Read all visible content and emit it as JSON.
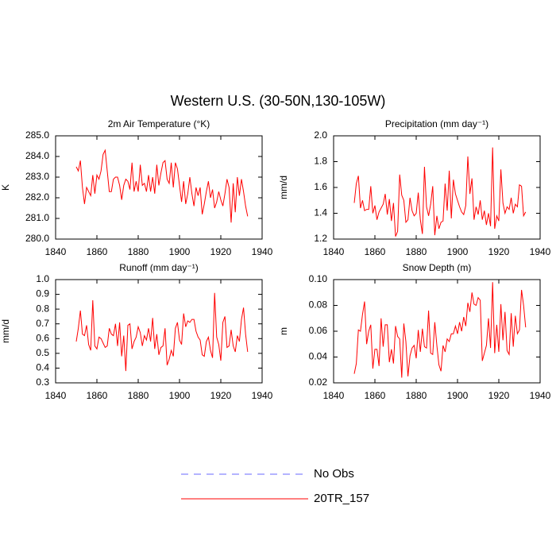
{
  "title": "Western U.S. (30-50N,130-105W)",
  "legend": [
    {
      "name": "No Obs",
      "color": "#6a6aff",
      "dashed": true
    },
    {
      "name": "20TR_157",
      "color": "#ff0000",
      "dashed": false
    }
  ],
  "chart_data": [
    {
      "type": "line",
      "title": "2m Air Temperature (°K)",
      "ylabel": "K",
      "x": [
        1850,
        1851,
        1852,
        1853,
        1854,
        1855,
        1856,
        1857,
        1858,
        1859,
        1860,
        1861,
        1862,
        1863,
        1864,
        1865,
        1866,
        1867,
        1868,
        1869,
        1870,
        1871,
        1872,
        1873,
        1874,
        1875,
        1876,
        1877,
        1878,
        1879,
        1880,
        1881,
        1882,
        1883,
        1884,
        1885,
        1886,
        1887,
        1888,
        1889,
        1890,
        1891,
        1892,
        1893,
        1894,
        1895,
        1896,
        1897,
        1898,
        1899,
        1900,
        1901,
        1902,
        1903,
        1904,
        1905,
        1906,
        1907,
        1908,
        1909,
        1910,
        1911,
        1912,
        1913,
        1914,
        1915,
        1916,
        1917,
        1918,
        1919,
        1920,
        1921,
        1922,
        1923,
        1924,
        1925,
        1926,
        1927,
        1928,
        1929,
        1930,
        1931,
        1932,
        1933
      ],
      "series": [
        {
          "color": "#ff0000",
          "values": [
            283.5,
            283.3,
            283.8,
            282.5,
            281.7,
            282.5,
            282.3,
            282.1,
            283.1,
            282.2,
            283.1,
            282.9,
            283.3,
            284.1,
            284.3,
            283.3,
            282.3,
            282.3,
            282.9,
            283.0,
            283.0,
            282.6,
            281.9,
            282.6,
            282.9,
            282.8,
            282.4,
            283.7,
            282.3,
            282.8,
            282.3,
            283.6,
            282.6,
            282.7,
            282.3,
            283.1,
            282.3,
            283.0,
            282.2,
            283.6,
            282.6,
            283.2,
            283.7,
            283.8,
            282.9,
            282.7,
            283.7,
            282.5,
            283.7,
            283.4,
            282.6,
            281.8,
            282.8,
            281.7,
            282.2,
            283.0,
            282.2,
            281.6,
            282.5,
            282.1,
            282.5,
            281.2,
            281.7,
            282.3,
            282.8,
            282.0,
            282.4,
            281.5,
            281.8,
            282.3,
            281.9,
            281.6,
            282.2,
            282.9,
            282.5,
            280.8,
            282.7,
            281.3,
            283.0,
            282.1,
            282.9,
            282.3,
            281.6,
            281.1
          ]
        }
      ],
      "xlim": [
        1840,
        1940
      ],
      "xticks": [
        1840,
        1860,
        1880,
        1900,
        1920,
        1940
      ],
      "ylim": [
        280,
        285
      ],
      "yticks": [
        {
          "value": 280,
          "label": "280.0"
        },
        {
          "value": 281,
          "label": "281.0"
        },
        {
          "value": 282,
          "label": "282.0"
        },
        {
          "value": 283,
          "label": "283.0"
        },
        {
          "value": 284,
          "label": "284.0"
        },
        {
          "value": 285,
          "label": "285.0"
        }
      ]
    },
    {
      "type": "line",
      "title": "Precipitation (mm day⁻¹)",
      "ylabel": "mm/d",
      "x": [
        1850,
        1851,
        1852,
        1853,
        1854,
        1855,
        1856,
        1857,
        1858,
        1859,
        1860,
        1861,
        1862,
        1863,
        1864,
        1865,
        1866,
        1867,
        1868,
        1869,
        1870,
        1871,
        1872,
        1873,
        1874,
        1875,
        1876,
        1877,
        1878,
        1879,
        1880,
        1881,
        1882,
        1883,
        1884,
        1885,
        1886,
        1887,
        1888,
        1889,
        1890,
        1891,
        1892,
        1893,
        1894,
        1895,
        1896,
        1897,
        1898,
        1899,
        1900,
        1901,
        1902,
        1903,
        1904,
        1905,
        1906,
        1907,
        1908,
        1909,
        1910,
        1911,
        1912,
        1913,
        1914,
        1915,
        1916,
        1917,
        1918,
        1919,
        1920,
        1921,
        1922,
        1923,
        1924,
        1925,
        1926,
        1927,
        1928,
        1929,
        1930,
        1931,
        1932,
        1933
      ],
      "series": [
        {
          "color": "#ff0000",
          "values": [
            1.48,
            1.63,
            1.69,
            1.44,
            1.5,
            1.42,
            1.43,
            1.43,
            1.61,
            1.4,
            1.46,
            1.35,
            1.41,
            1.44,
            1.47,
            1.55,
            1.39,
            1.51,
            1.34,
            1.48,
            1.22,
            1.26,
            1.7,
            1.54,
            1.5,
            1.33,
            1.35,
            1.52,
            1.42,
            1.38,
            1.4,
            1.56,
            1.35,
            1.24,
            1.76,
            1.45,
            1.38,
            1.47,
            1.61,
            1.23,
            1.38,
            1.28,
            1.33,
            1.34,
            1.63,
            1.42,
            1.73,
            1.36,
            1.66,
            1.55,
            1.5,
            1.45,
            1.41,
            1.39,
            1.46,
            1.84,
            1.55,
            1.67,
            1.35,
            1.45,
            1.39,
            1.5,
            1.35,
            1.42,
            1.31,
            1.4,
            1.3,
            1.91,
            1.28,
            1.38,
            1.34,
            1.74,
            1.48,
            1.4,
            1.45,
            1.43,
            1.52,
            1.4,
            1.47,
            1.45,
            1.62,
            1.61,
            1.38,
            1.41
          ]
        }
      ],
      "xlim": [
        1840,
        1940
      ],
      "xticks": [
        1840,
        1860,
        1880,
        1900,
        1920,
        1940
      ],
      "ylim": [
        1.2,
        2.0
      ],
      "yticks": [
        1.2,
        1.4,
        1.6,
        1.8,
        {
          "value": 2.0,
          "label": "2.0"
        }
      ]
    },
    {
      "type": "line",
      "title": "Runoff (mm day⁻¹)",
      "ylabel": "mm/d",
      "x": [
        1850,
        1851,
        1852,
        1853,
        1854,
        1855,
        1856,
        1857,
        1858,
        1859,
        1860,
        1861,
        1862,
        1863,
        1864,
        1865,
        1866,
        1867,
        1868,
        1869,
        1870,
        1871,
        1872,
        1873,
        1874,
        1875,
        1876,
        1877,
        1878,
        1879,
        1880,
        1881,
        1882,
        1883,
        1884,
        1885,
        1886,
        1887,
        1888,
        1889,
        1890,
        1891,
        1892,
        1893,
        1894,
        1895,
        1896,
        1897,
        1898,
        1899,
        1900,
        1901,
        1902,
        1903,
        1904,
        1905,
        1906,
        1907,
        1908,
        1909,
        1910,
        1911,
        1912,
        1913,
        1914,
        1915,
        1916,
        1917,
        1918,
        1919,
        1920,
        1921,
        1922,
        1923,
        1924,
        1925,
        1926,
        1927,
        1928,
        1929,
        1930,
        1931,
        1932,
        1933
      ],
      "series": [
        {
          "color": "#ff0000",
          "values": [
            0.58,
            0.67,
            0.79,
            0.63,
            0.62,
            0.69,
            0.56,
            0.52,
            0.86,
            0.55,
            0.53,
            0.61,
            0.6,
            0.57,
            0.54,
            0.55,
            0.67,
            0.63,
            0.62,
            0.7,
            0.55,
            0.71,
            0.48,
            0.62,
            0.38,
            0.69,
            0.7,
            0.53,
            0.58,
            0.61,
            0.68,
            0.64,
            0.55,
            0.62,
            0.59,
            0.67,
            0.58,
            0.74,
            0.53,
            0.63,
            0.49,
            0.54,
            0.55,
            0.67,
            0.42,
            0.46,
            0.52,
            0.48,
            0.67,
            0.71,
            0.59,
            0.56,
            0.77,
            0.68,
            0.72,
            0.71,
            0.73,
            0.73,
            0.65,
            0.61,
            0.59,
            0.49,
            0.48,
            0.58,
            0.61,
            0.52,
            0.47,
            0.91,
            0.61,
            0.56,
            0.45,
            0.71,
            0.75,
            0.54,
            0.55,
            0.66,
            0.55,
            0.51,
            0.62,
            0.58,
            0.73,
            0.81,
            0.63,
            0.51
          ]
        }
      ],
      "xlim": [
        1840,
        1940
      ],
      "xticks": [
        1840,
        1860,
        1880,
        1900,
        1920,
        1940
      ],
      "ylim": [
        0.3,
        1.0
      ],
      "yticks": [
        0.3,
        0.4,
        0.5,
        0.6,
        0.7,
        0.8,
        0.9,
        {
          "value": 1.0,
          "label": "1.0"
        }
      ]
    },
    {
      "type": "line",
      "title": "Snow Depth (m)",
      "ylabel": "m",
      "x": [
        1850,
        1851,
        1852,
        1853,
        1854,
        1855,
        1856,
        1857,
        1858,
        1859,
        1860,
        1861,
        1862,
        1863,
        1864,
        1865,
        1866,
        1867,
        1868,
        1869,
        1870,
        1871,
        1872,
        1873,
        1874,
        1875,
        1876,
        1877,
        1878,
        1879,
        1880,
        1881,
        1882,
        1883,
        1884,
        1885,
        1886,
        1887,
        1888,
        1889,
        1890,
        1891,
        1892,
        1893,
        1894,
        1895,
        1896,
        1897,
        1898,
        1899,
        1900,
        1901,
        1902,
        1903,
        1904,
        1905,
        1906,
        1907,
        1908,
        1909,
        1910,
        1911,
        1912,
        1913,
        1914,
        1915,
        1916,
        1917,
        1918,
        1919,
        1920,
        1921,
        1922,
        1923,
        1924,
        1925,
        1926,
        1927,
        1928,
        1929,
        1930,
        1931,
        1932,
        1933
      ],
      "series": [
        {
          "color": "#ff0000",
          "values": [
            0.027,
            0.035,
            0.061,
            0.06,
            0.073,
            0.083,
            0.05,
            0.06,
            0.065,
            0.031,
            0.046,
            0.046,
            0.033,
            0.07,
            0.048,
            0.065,
            0.065,
            0.036,
            0.046,
            0.035,
            0.064,
            0.056,
            0.054,
            0.024,
            0.066,
            0.052,
            0.025,
            0.041,
            0.047,
            0.049,
            0.039,
            0.061,
            0.044,
            0.062,
            0.048,
            0.047,
            0.076,
            0.043,
            0.042,
            0.067,
            0.049,
            0.034,
            0.029,
            0.049,
            0.044,
            0.054,
            0.052,
            0.058,
            0.058,
            0.064,
            0.058,
            0.067,
            0.06,
            0.071,
            0.064,
            0.082,
            0.075,
            0.09,
            0.081,
            0.08,
            0.086,
            0.084,
            0.037,
            0.043,
            0.049,
            0.07,
            0.047,
            0.098,
            0.043,
            0.065,
            0.044,
            0.081,
            0.053,
            0.075,
            0.045,
            0.042,
            0.074,
            0.048,
            0.072,
            0.058,
            0.061,
            0.092,
            0.08,
            0.063
          ]
        }
      ],
      "xlim": [
        1840,
        1940
      ],
      "xticks": [
        1840,
        1860,
        1880,
        1900,
        1920,
        1940
      ],
      "ylim": [
        0.02,
        0.1
      ],
      "yticks": [
        0.02,
        0.04,
        0.06,
        0.08,
        {
          "value": 0.1,
          "label": "0.10"
        }
      ]
    }
  ]
}
